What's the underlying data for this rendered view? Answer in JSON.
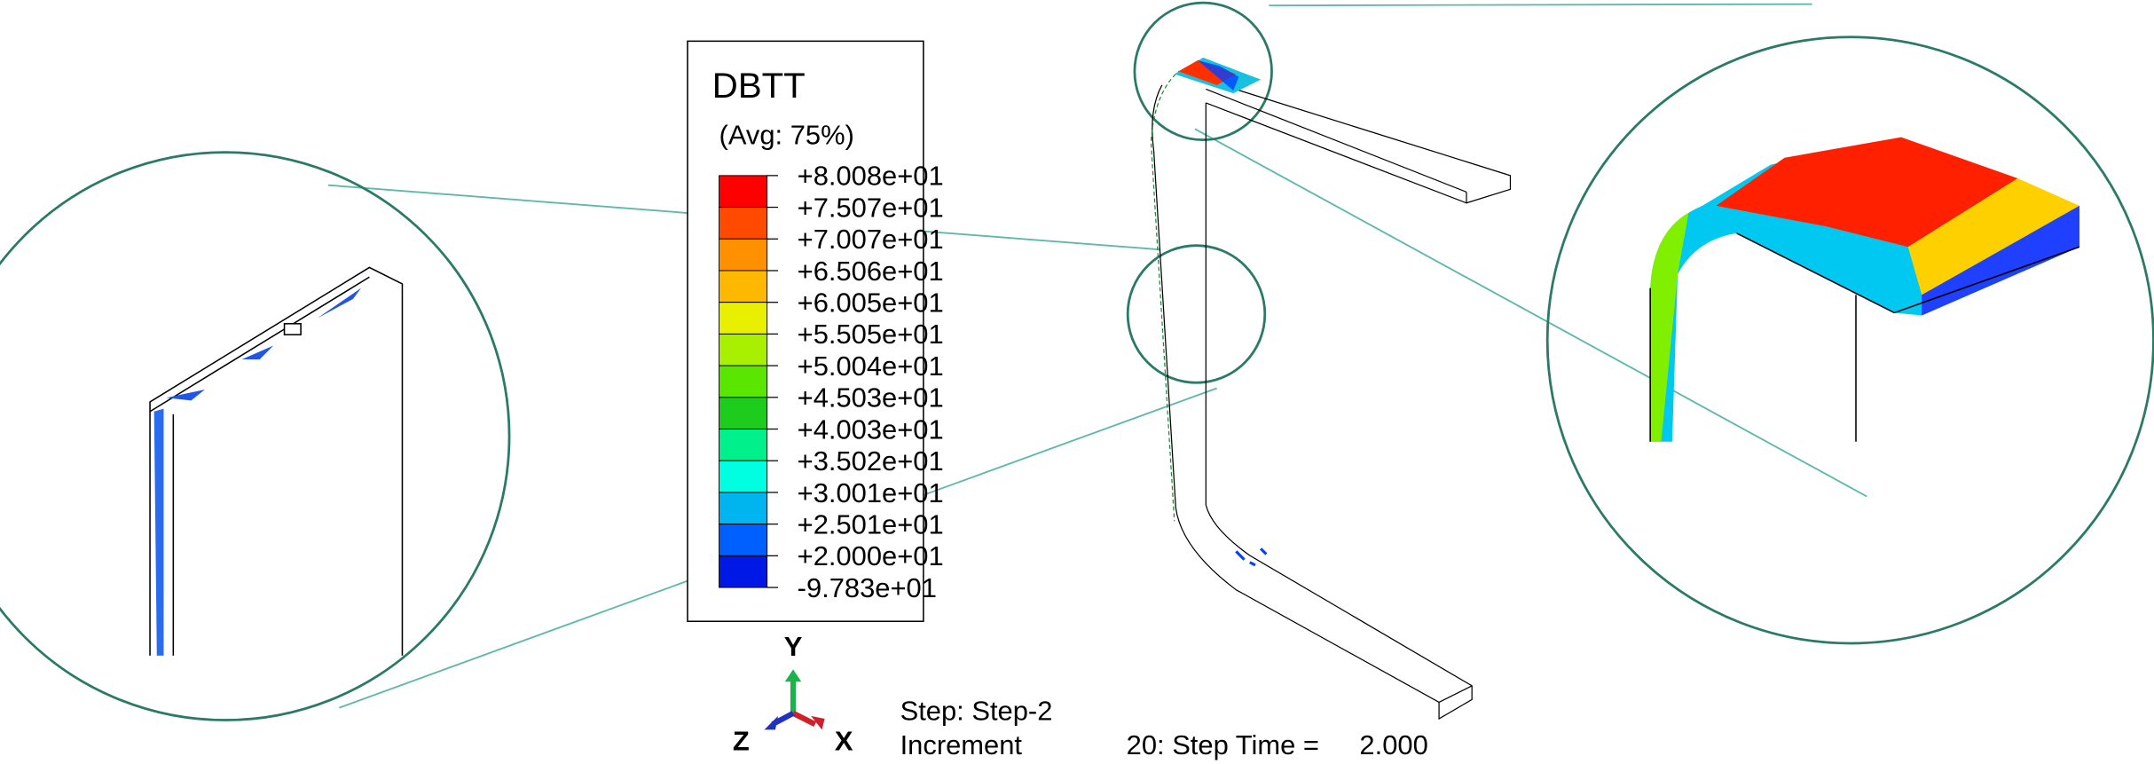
{
  "legend": {
    "title": "DBTT",
    "subtitle": "(Avg: 75%)",
    "levels": [
      "+8.008e+01",
      "+7.507e+01",
      "+7.007e+01",
      "+6.506e+01",
      "+6.005e+01",
      "+5.505e+01",
      "+5.004e+01",
      "+4.503e+01",
      "+4.003e+01",
      "+3.502e+01",
      "+3.001e+01",
      "+2.501e+01",
      "+2.000e+01",
      "-9.783e+01"
    ],
    "colors": [
      "#ff0000",
      "#ff4a00",
      "#ff9000",
      "#ffb800",
      "#e8f000",
      "#a8f000",
      "#5ae600",
      "#1ecc1e",
      "#00f08c",
      "#00ffe0",
      "#00b4f0",
      "#0060ff",
      "#0018e6",
      "#ffffff"
    ]
  },
  "triad": {
    "y": "Y",
    "z": "Z",
    "x": "X"
  },
  "status": {
    "step": "Step: Step-2",
    "increment_label": "Increment",
    "increment": "20: Step Time =",
    "time": "2.000"
  }
}
